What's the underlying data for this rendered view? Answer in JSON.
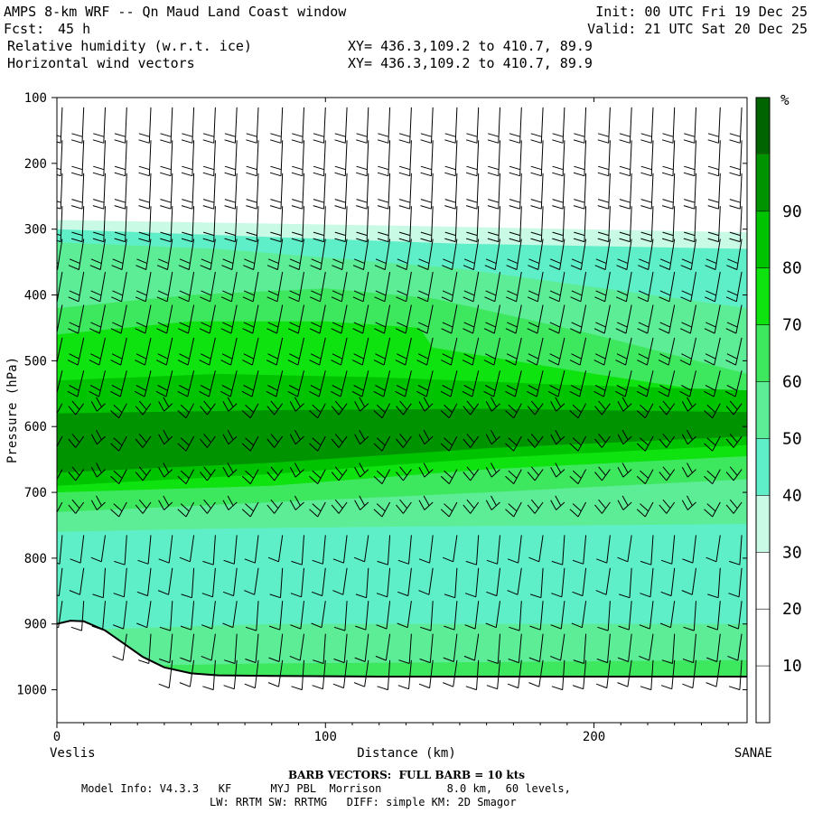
{
  "header": {
    "title": "AMPS 8-km WRF -- Qn Maud Land Coast window",
    "fcst_label": "Fcst:",
    "fcst_value": "45 h",
    "init": "Init: 00 UTC Fri 19 Dec 25",
    "valid": "Valid: 21 UTC Sat 20 Dec 25",
    "field1": "Relative humidity (w.r.t. ice)",
    "field2": "Horizontal wind vectors",
    "xy1": "XY= 436.3,109.2 to 410.7, 89.9",
    "xy2": "XY= 436.3,109.2 to 410.7, 89.9"
  },
  "footer": {
    "barb_note": "BARB VECTORS:  FULL BARB = 10 kts",
    "model_info": "Model Info: V4.3.3   KF      MYJ PBL  Morrison          8.0 km,  60 levels,",
    "physics": "LW: RRTM SW: RRTMG   DIFF: simple KM: 2D Smagor"
  },
  "chart_data": {
    "type": "heatmap",
    "xlabel": "Distance (km)",
    "ylabel": "Pressure (hPa)",
    "x_ticks": [
      0,
      100,
      200
    ],
    "y_ticks": [
      100,
      200,
      300,
      400,
      500,
      600,
      700,
      800,
      900,
      1000
    ],
    "xlim": [
      0,
      257
    ],
    "ylim": [
      100,
      1050
    ],
    "y_inverted": true,
    "start_label": "Veslis",
    "end_label": "SANAE",
    "colorbar": {
      "unit": "%",
      "levels": [
        10,
        20,
        30,
        40,
        50,
        60,
        70,
        80,
        90
      ],
      "colors": [
        "#ffffff",
        "#ffffff",
        "#ffffff",
        "#c8fae6",
        "#5fefc8",
        "#5ded96",
        "#3ee85e",
        "#0fe30f",
        "#00c300",
        "#009300",
        "#006400"
      ]
    },
    "rh_layers": [
      {
        "color": "#c8fae6",
        "top": [
          [
            0,
            286
          ],
          [
            130,
            295
          ],
          [
            257,
            305
          ]
        ],
        "bottom": [
          [
            0,
            980
          ],
          [
            257,
            980
          ]
        ]
      },
      {
        "color": "#5fefc8",
        "top": [
          [
            0,
            300
          ],
          [
            80,
            312
          ],
          [
            150,
            322
          ],
          [
            257,
            330
          ]
        ],
        "bottom": [
          [
            0,
            980
          ],
          [
            257,
            980
          ]
        ]
      },
      {
        "color": "#5ded96",
        "top": [
          [
            0,
            320
          ],
          [
            60,
            330
          ],
          [
            150,
            360
          ],
          [
            257,
            420
          ]
        ],
        "bottom": [
          [
            0,
            860
          ],
          [
            60,
            850
          ],
          [
            130,
            835
          ],
          [
            257,
            830
          ]
        ]
      },
      {
        "color": "#3ee85e",
        "top": [
          [
            0,
            420
          ],
          [
            50,
            400
          ],
          [
            100,
            390
          ],
          [
            140,
            405
          ],
          [
            200,
            460
          ],
          [
            257,
            520
          ]
        ],
        "bottom": [
          [
            0,
            730
          ],
          [
            80,
            715
          ],
          [
            160,
            700
          ],
          [
            257,
            680
          ]
        ]
      },
      {
        "color": "#0fe30f",
        "top": [
          [
            0,
            460
          ],
          [
            50,
            440
          ],
          [
            100,
            440
          ],
          [
            135,
            450
          ],
          [
            140,
            480
          ],
          [
            200,
            520
          ],
          [
            257,
            555
          ]
        ],
        "bottom": [
          [
            0,
            700
          ],
          [
            80,
            690
          ],
          [
            160,
            665
          ],
          [
            257,
            645
          ]
        ]
      },
      {
        "color": "#00c300",
        "top": [
          [
            0,
            530
          ],
          [
            60,
            520
          ],
          [
            120,
            525
          ],
          [
            180,
            535
          ],
          [
            257,
            545
          ]
        ],
        "bottom": [
          [
            0,
            690
          ],
          [
            80,
            672
          ],
          [
            160,
            648
          ],
          [
            257,
            628
          ]
        ]
      },
      {
        "color": "#009300",
        "top": [
          [
            0,
            580
          ],
          [
            80,
            575
          ],
          [
            160,
            573
          ],
          [
            257,
            578
          ]
        ],
        "bottom": [
          [
            0,
            670
          ],
          [
            80,
            655
          ],
          [
            160,
            633
          ],
          [
            257,
            615
          ]
        ]
      },
      {
        "color": "#5fefc8",
        "top": [
          [
            0,
            760
          ],
          [
            60,
            755
          ],
          [
            130,
            752
          ],
          [
            200,
            750
          ],
          [
            257,
            748
          ]
        ],
        "bottom": [
          [
            0,
            980
          ],
          [
            257,
            980
          ]
        ]
      },
      {
        "color": "#5ded96",
        "top": [
          [
            0,
            910
          ],
          [
            80,
            900
          ],
          [
            160,
            900
          ],
          [
            257,
            900
          ]
        ],
        "bottom": [
          [
            0,
            980
          ],
          [
            257,
            980
          ]
        ]
      },
      {
        "color": "#3ee85e",
        "top": [
          [
            0,
            965
          ],
          [
            80,
            960
          ],
          [
            160,
            958
          ],
          [
            257,
            955
          ]
        ],
        "bottom": [
          [
            0,
            990
          ],
          [
            257,
            990
          ]
        ]
      }
    ],
    "terrain": [
      [
        0,
        900
      ],
      [
        5,
        895
      ],
      [
        10,
        896
      ],
      [
        18,
        910
      ],
      [
        25,
        930
      ],
      [
        32,
        950
      ],
      [
        40,
        966
      ],
      [
        50,
        975
      ],
      [
        60,
        978
      ],
      [
        80,
        979
      ],
      [
        120,
        980
      ],
      [
        200,
        980
      ],
      [
        257,
        980
      ]
    ],
    "barb_columns_km": [
      2,
      10,
      18,
      26,
      35,
      43,
      51,
      59,
      67,
      75,
      84,
      92,
      100,
      108,
      116,
      124,
      132,
      140,
      149,
      157,
      165,
      173,
      181,
      189,
      197,
      206,
      214,
      222,
      230,
      238,
      247,
      255
    ],
    "barb_levels_hpa": [
      115,
      165,
      215,
      265,
      315,
      365,
      415,
      465,
      515,
      565,
      615,
      665,
      715,
      765,
      815,
      865,
      915,
      955
    ]
  }
}
